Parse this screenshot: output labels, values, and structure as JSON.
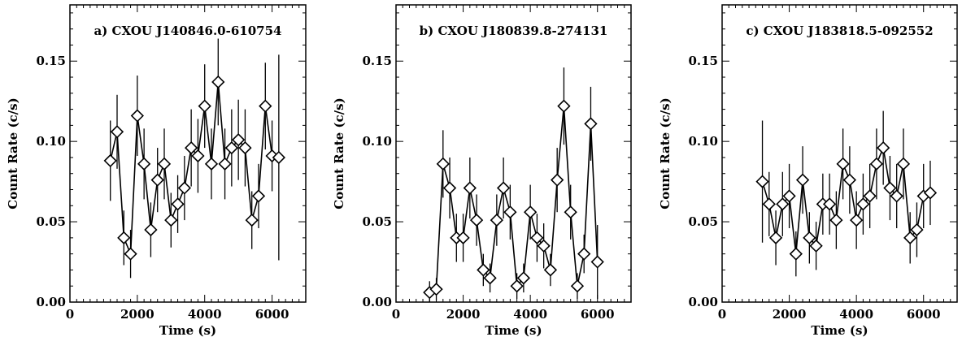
{
  "chart_data": [
    {
      "type": "line",
      "title": "a) CXOU J140846.0-610754",
      "xlabel": "Time (s)",
      "ylabel": "Count Rate (c/s)",
      "xlim": [
        0,
        7000
      ],
      "ylim": [
        0,
        0.185
      ],
      "xticks": [
        0,
        2000,
        4000,
        6000
      ],
      "xtick_labels": [
        "0",
        "2000",
        "4000",
        "6000"
      ],
      "yticks": [
        0,
        0.05,
        0.1,
        0.15
      ],
      "ytick_labels": [
        "0.00",
        "0.05",
        "0.10",
        "0.15"
      ],
      "marker": "diamond",
      "x": [
        1200,
        1400,
        1600,
        1800,
        2000,
        2200,
        2400,
        2600,
        2800,
        3000,
        3200,
        3400,
        3600,
        3800,
        4000,
        4200,
        4400,
        4600,
        4800,
        5000,
        5200,
        5400,
        5600,
        5800,
        6000,
        6200
      ],
      "y": [
        0.088,
        0.106,
        0.04,
        0.03,
        0.116,
        0.086,
        0.045,
        0.076,
        0.086,
        0.051,
        0.061,
        0.071,
        0.096,
        0.091,
        0.122,
        0.086,
        0.137,
        0.086,
        0.096,
        0.101,
        0.096,
        0.051,
        0.066,
        0.122,
        0.091,
        0.09
      ],
      "yerr": [
        0.025,
        0.023,
        0.017,
        0.015,
        0.025,
        0.022,
        0.017,
        0.02,
        0.022,
        0.017,
        0.018,
        0.02,
        0.024,
        0.023,
        0.026,
        0.022,
        0.027,
        0.022,
        0.024,
        0.025,
        0.024,
        0.018,
        0.02,
        0.027,
        0.022,
        0.064
      ]
    },
    {
      "type": "line",
      "title": "b) CXOU J180839.8-274131",
      "xlabel": "Time (s)",
      "ylabel": "Count Rate (c/s)",
      "xlim": [
        0,
        7000
      ],
      "ylim": [
        0,
        0.185
      ],
      "xticks": [
        0,
        2000,
        4000,
        6000
      ],
      "xtick_labels": [
        "0",
        "2000",
        "4000",
        "6000"
      ],
      "yticks": [
        0,
        0.05,
        0.1,
        0.15
      ],
      "ytick_labels": [
        "0.00",
        "0.05",
        "0.10",
        "0.15"
      ],
      "marker": "diamond",
      "x": [
        1000,
        1200,
        1400,
        1600,
        1800,
        2000,
        2200,
        2400,
        2600,
        2800,
        3000,
        3200,
        3400,
        3600,
        3800,
        4000,
        4200,
        4400,
        4600,
        4800,
        5000,
        5200,
        5400,
        5600,
        5800,
        6000
      ],
      "y": [
        0.006,
        0.008,
        0.086,
        0.071,
        0.04,
        0.04,
        0.071,
        0.051,
        0.02,
        0.015,
        0.051,
        0.071,
        0.056,
        0.01,
        0.015,
        0.056,
        0.04,
        0.035,
        0.02,
        0.076,
        0.122,
        0.056,
        0.01,
        0.03,
        0.111,
        0.025
      ],
      "yerr": [
        0.007,
        0.007,
        0.021,
        0.019,
        0.015,
        0.015,
        0.019,
        0.016,
        0.01,
        0.009,
        0.016,
        0.019,
        0.017,
        0.008,
        0.009,
        0.017,
        0.015,
        0.014,
        0.01,
        0.02,
        0.024,
        0.017,
        0.008,
        0.012,
        0.023,
        0.023
      ]
    },
    {
      "type": "line",
      "title": "c) CXOU J183818.5-092552",
      "xlabel": "Time (s)",
      "ylabel": "Count Rate (c/s)",
      "xlim": [
        0,
        7000
      ],
      "ylim": [
        0,
        0.185
      ],
      "xticks": [
        0,
        2000,
        4000,
        6000
      ],
      "xtick_labels": [
        "0",
        "2000",
        "4000",
        "6000"
      ],
      "yticks": [
        0,
        0.05,
        0.1,
        0.15
      ],
      "ytick_labels": [
        "0.00",
        "0.05",
        "0.10",
        "0.15"
      ],
      "marker": "diamond",
      "x": [
        1200,
        1400,
        1600,
        1800,
        2000,
        2200,
        2400,
        2600,
        2800,
        3000,
        3200,
        3400,
        3600,
        3800,
        4000,
        4200,
        4400,
        4600,
        4800,
        5000,
        5200,
        5400,
        5600,
        5800,
        6000,
        6200
      ],
      "y": [
        0.075,
        0.061,
        0.04,
        0.061,
        0.066,
        0.03,
        0.076,
        0.04,
        0.035,
        0.061,
        0.061,
        0.051,
        0.086,
        0.076,
        0.051,
        0.061,
        0.066,
        0.086,
        0.096,
        0.071,
        0.066,
        0.086,
        0.04,
        0.045,
        0.066,
        0.068
      ],
      "yerr": [
        0.038,
        0.02,
        0.017,
        0.02,
        0.02,
        0.014,
        0.021,
        0.016,
        0.015,
        0.019,
        0.019,
        0.018,
        0.022,
        0.021,
        0.018,
        0.019,
        0.02,
        0.022,
        0.023,
        0.02,
        0.02,
        0.022,
        0.016,
        0.017,
        0.02,
        0.02
      ]
    }
  ]
}
